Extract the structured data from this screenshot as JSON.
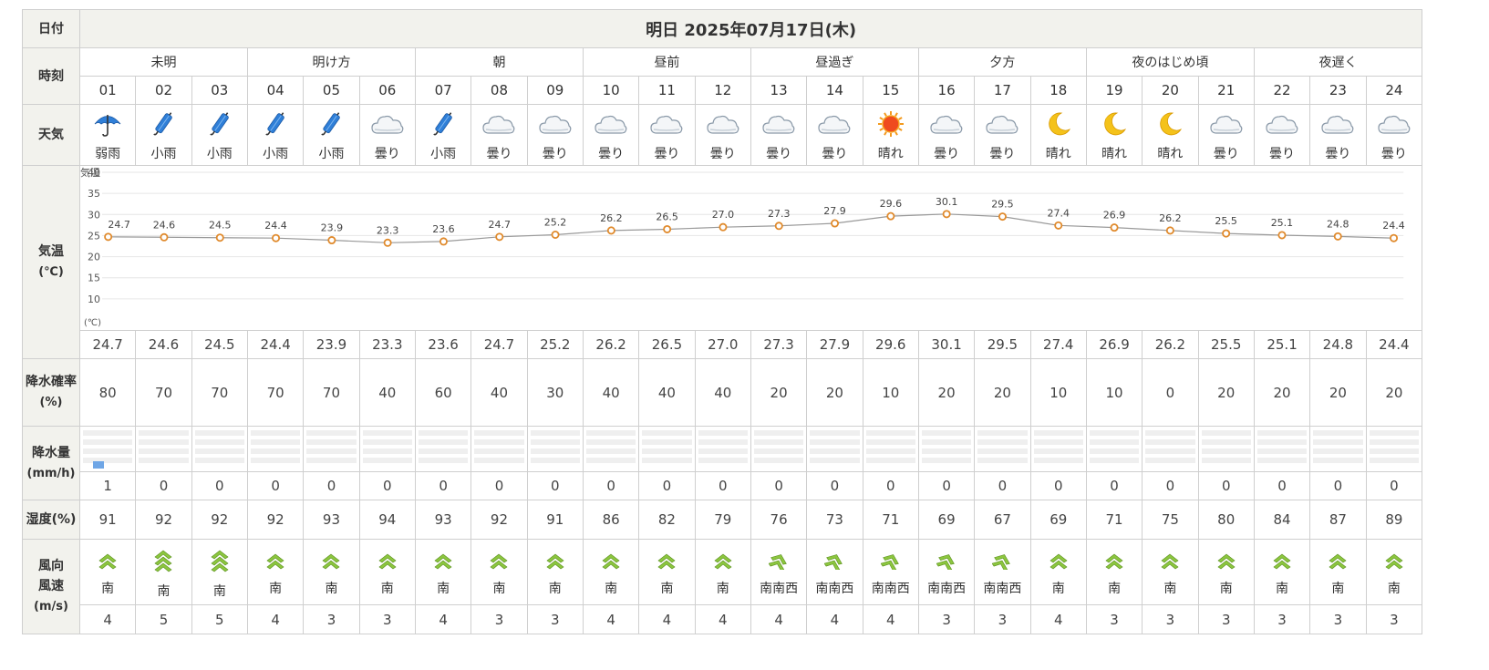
{
  "labels": {
    "date": "日付",
    "time": "時刻",
    "weather": "天気",
    "temp_title": "気温",
    "temp_unit": "(℃)",
    "precip_prob_title": "降水確率",
    "precip_prob_unit": "(%)",
    "precip_amount_title": "降水量",
    "precip_amount_unit": "(mm/h)",
    "humidity": "湿度(%)",
    "wind_dir": "風向",
    "wind_speed": "風速",
    "wind_unit": "(m/s)"
  },
  "date_title": "明日 2025年07月17日(木)",
  "periods": [
    "未明",
    "明け方",
    "朝",
    "昼前",
    "昼過ぎ",
    "夕方",
    "夜のはじめ頃",
    "夜遅く"
  ],
  "hours": [
    "01",
    "02",
    "03",
    "04",
    "05",
    "06",
    "07",
    "08",
    "09",
    "10",
    "11",
    "12",
    "13",
    "14",
    "15",
    "16",
    "17",
    "18",
    "19",
    "20",
    "21",
    "22",
    "23",
    "24"
  ],
  "weather": [
    {
      "icon": "umbrella-icon",
      "text": "弱雨"
    },
    {
      "icon": "light-rain-icon",
      "text": "小雨"
    },
    {
      "icon": "light-rain-icon",
      "text": "小雨"
    },
    {
      "icon": "light-rain-icon",
      "text": "小雨"
    },
    {
      "icon": "light-rain-icon",
      "text": "小雨"
    },
    {
      "icon": "cloud-icon",
      "text": "曇り"
    },
    {
      "icon": "light-rain-icon",
      "text": "小雨"
    },
    {
      "icon": "cloud-icon",
      "text": "曇り"
    },
    {
      "icon": "cloud-icon",
      "text": "曇り"
    },
    {
      "icon": "cloud-icon",
      "text": "曇り"
    },
    {
      "icon": "cloud-icon",
      "text": "曇り"
    },
    {
      "icon": "cloud-icon",
      "text": "曇り"
    },
    {
      "icon": "cloud-icon",
      "text": "曇り"
    },
    {
      "icon": "cloud-icon",
      "text": "曇り"
    },
    {
      "icon": "sun-icon",
      "text": "晴れ"
    },
    {
      "icon": "cloud-icon",
      "text": "曇り"
    },
    {
      "icon": "cloud-icon",
      "text": "曇り"
    },
    {
      "icon": "moon-icon",
      "text": "晴れ"
    },
    {
      "icon": "moon-icon",
      "text": "晴れ"
    },
    {
      "icon": "moon-icon",
      "text": "晴れ"
    },
    {
      "icon": "cloud-icon",
      "text": "曇り"
    },
    {
      "icon": "cloud-icon",
      "text": "曇り"
    },
    {
      "icon": "cloud-icon",
      "text": "曇り"
    },
    {
      "icon": "cloud-icon",
      "text": "曇り"
    }
  ],
  "precip_prob": [
    "80",
    "70",
    "70",
    "70",
    "70",
    "40",
    "60",
    "40",
    "30",
    "40",
    "40",
    "40",
    "20",
    "20",
    "10",
    "20",
    "20",
    "10",
    "10",
    "0",
    "20",
    "20",
    "20",
    "20"
  ],
  "precip_mm": [
    "1",
    "0",
    "0",
    "0",
    "0",
    "0",
    "0",
    "0",
    "0",
    "0",
    "0",
    "0",
    "0",
    "0",
    "0",
    "0",
    "0",
    "0",
    "0",
    "0",
    "0",
    "0",
    "0",
    "0"
  ],
  "humidity": [
    "91",
    "92",
    "92",
    "92",
    "93",
    "94",
    "93",
    "92",
    "91",
    "86",
    "82",
    "79",
    "76",
    "73",
    "71",
    "69",
    "67",
    "69",
    "71",
    "75",
    "80",
    "84",
    "87",
    "89"
  ],
  "wind_dir": [
    "南",
    "南",
    "南",
    "南",
    "南",
    "南",
    "南",
    "南",
    "南",
    "南",
    "南",
    "南",
    "南南西",
    "南南西",
    "南南西",
    "南南西",
    "南南西",
    "南",
    "南",
    "南",
    "南",
    "南",
    "南",
    "南"
  ],
  "wind_speed": [
    "4",
    "5",
    "5",
    "4",
    "3",
    "3",
    "4",
    "3",
    "3",
    "4",
    "4",
    "4",
    "4",
    "4",
    "4",
    "3",
    "3",
    "4",
    "3",
    "3",
    "3",
    "3",
    "3",
    "3"
  ],
  "chart_data": {
    "type": "line",
    "ylabel": "気温",
    "yunit": "(℃)",
    "ylim": [
      5,
      40
    ],
    "yticks": [
      10,
      15,
      20,
      25,
      30,
      35,
      40
    ],
    "grid": true,
    "x": [
      "01",
      "02",
      "03",
      "04",
      "05",
      "06",
      "07",
      "08",
      "09",
      "10",
      "11",
      "12",
      "13",
      "14",
      "15",
      "16",
      "17",
      "18",
      "19",
      "20",
      "21",
      "22",
      "23",
      "24"
    ],
    "series": [
      {
        "values": [
          24.7,
          24.6,
          24.5,
          24.4,
          23.9,
          23.3,
          23.6,
          24.7,
          25.2,
          26.2,
          26.5,
          27.0,
          27.3,
          27.9,
          29.6,
          30.1,
          29.5,
          27.4,
          26.9,
          26.2,
          25.5,
          25.1,
          24.8,
          24.4
        ],
        "labels": [
          "24.7",
          "24.6",
          "24.5",
          "24.4",
          "23.9",
          "23.3",
          "23.6",
          "24.7",
          "25.2",
          "26.2",
          "26.5",
          "27.0",
          "27.3",
          "27.9",
          "29.6",
          "30.1",
          "29.5",
          "27.4",
          "26.9",
          "26.2",
          "25.5",
          "25.1",
          "24.8",
          "24.4"
        ]
      }
    ],
    "colors": {
      "line": "#999999",
      "marker": "#e08a2c",
      "grid": "#e6e6e6"
    }
  }
}
